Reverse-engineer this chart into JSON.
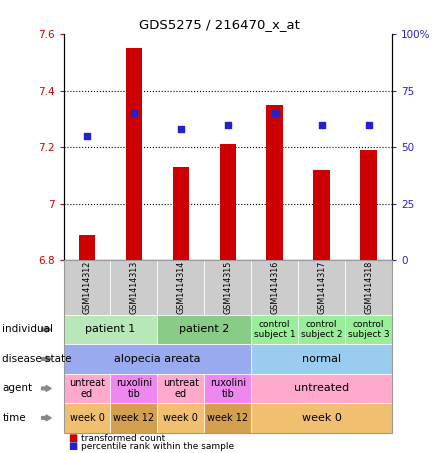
{
  "title": "GDS5275 / 216470_x_at",
  "samples": [
    "GSM1414312",
    "GSM1414313",
    "GSM1414314",
    "GSM1414315",
    "GSM1414316",
    "GSM1414317",
    "GSM1414318"
  ],
  "bar_values": [
    6.89,
    7.55,
    7.13,
    7.21,
    7.35,
    7.12,
    7.19
  ],
  "dot_values": [
    55,
    65,
    58,
    60,
    65,
    60,
    60
  ],
  "ylim_left": [
    6.8,
    7.6
  ],
  "ylim_right": [
    0,
    100
  ],
  "yticks_left": [
    6.8,
    7.0,
    7.2,
    7.4,
    7.6
  ],
  "yticks_right": [
    0,
    25,
    50,
    75,
    100
  ],
  "bar_color": "#cc0000",
  "dot_color": "#2222cc",
  "annotation_rows": [
    {
      "label": "individual",
      "cells": [
        {
          "text": "patient 1",
          "span": 2,
          "color": "#b8e8b8",
          "fontsize": 8
        },
        {
          "text": "patient 2",
          "span": 2,
          "color": "#88cc88",
          "fontsize": 8
        },
        {
          "text": "control\nsubject 1",
          "span": 1,
          "color": "#99ee99",
          "fontsize": 6.5
        },
        {
          "text": "control\nsubject 2",
          "span": 1,
          "color": "#99ee99",
          "fontsize": 6.5
        },
        {
          "text": "control\nsubject 3",
          "span": 1,
          "color": "#99ee99",
          "fontsize": 6.5
        }
      ]
    },
    {
      "label": "disease state",
      "cells": [
        {
          "text": "alopecia areata",
          "span": 4,
          "color": "#99aaee",
          "fontsize": 8
        },
        {
          "text": "normal",
          "span": 3,
          "color": "#99ccee",
          "fontsize": 8
        }
      ]
    },
    {
      "label": "agent",
      "cells": [
        {
          "text": "untreat\ned",
          "span": 1,
          "color": "#ffaacc",
          "fontsize": 7
        },
        {
          "text": "ruxolini\ntib",
          "span": 1,
          "color": "#ee88ee",
          "fontsize": 7
        },
        {
          "text": "untreat\ned",
          "span": 1,
          "color": "#ffaacc",
          "fontsize": 7
        },
        {
          "text": "ruxolini\ntib",
          "span": 1,
          "color": "#ee88ee",
          "fontsize": 7
        },
        {
          "text": "untreated",
          "span": 3,
          "color": "#ffaacc",
          "fontsize": 8
        }
      ]
    },
    {
      "label": "time",
      "cells": [
        {
          "text": "week 0",
          "span": 1,
          "color": "#f0c070",
          "fontsize": 7
        },
        {
          "text": "week 12",
          "span": 1,
          "color": "#d4a050",
          "fontsize": 7
        },
        {
          "text": "week 0",
          "span": 1,
          "color": "#f0c070",
          "fontsize": 7
        },
        {
          "text": "week 12",
          "span": 1,
          "color": "#d4a050",
          "fontsize": 7
        },
        {
          "text": "week 0",
          "span": 3,
          "color": "#f0c070",
          "fontsize": 8
        }
      ]
    }
  ]
}
